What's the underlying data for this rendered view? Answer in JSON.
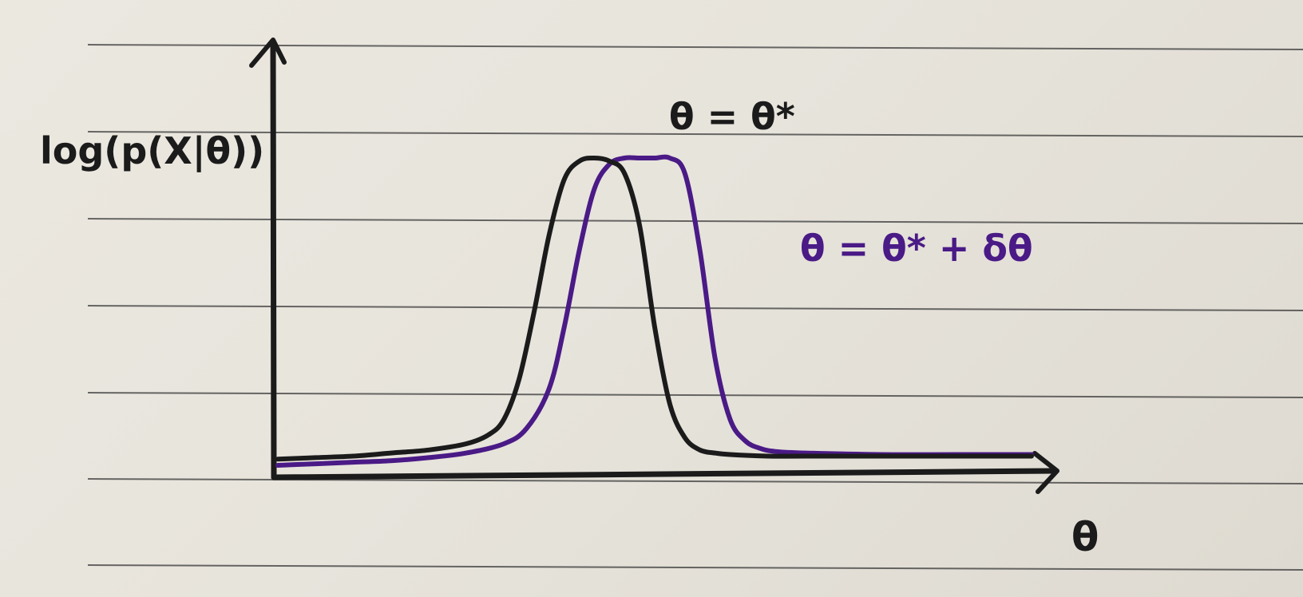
{
  "chart_data": {
    "type": "line",
    "ylabel": "log(p(X|θ))",
    "xlabel": "θ",
    "grid": false,
    "axes_ticks": false,
    "series": [
      {
        "name": "θ = θ*",
        "color": "#1b1b1b",
        "x": [
          0,
          5,
          10,
          15,
          20,
          25,
          28,
          30,
          32,
          34,
          36,
          38,
          40,
          42,
          44,
          46,
          48,
          50,
          52,
          54,
          56,
          58,
          60,
          65,
          70,
          80,
          90,
          100
        ],
        "y": [
          0.02,
          0.025,
          0.03,
          0.04,
          0.05,
          0.07,
          0.1,
          0.15,
          0.28,
          0.5,
          0.75,
          0.93,
          0.99,
          1.0,
          0.99,
          0.95,
          0.78,
          0.45,
          0.2,
          0.09,
          0.05,
          0.04,
          0.035,
          0.03,
          0.03,
          0.03,
          0.03,
          0.03
        ]
      },
      {
        "name": "θ = θ* + δθ",
        "color": "#4a1a86",
        "x": [
          0,
          5,
          10,
          15,
          20,
          25,
          30,
          33,
          36,
          38,
          40,
          42,
          44,
          46,
          48,
          50,
          52,
          54,
          56,
          58,
          60,
          62,
          64,
          66,
          70,
          80,
          90,
          100
        ],
        "y": [
          0.0,
          0.005,
          0.01,
          0.015,
          0.025,
          0.04,
          0.07,
          0.12,
          0.25,
          0.45,
          0.7,
          0.9,
          0.98,
          1.0,
          1.0,
          1.0,
          1.0,
          0.95,
          0.7,
          0.35,
          0.15,
          0.08,
          0.055,
          0.045,
          0.04,
          0.035,
          0.035,
          0.035
        ]
      }
    ]
  },
  "colors": {
    "paper": "#e9e6de",
    "ruled_line": "#3a3a3a",
    "ink_black": "#1b1b1b",
    "ink_purple": "#4a1a86"
  }
}
